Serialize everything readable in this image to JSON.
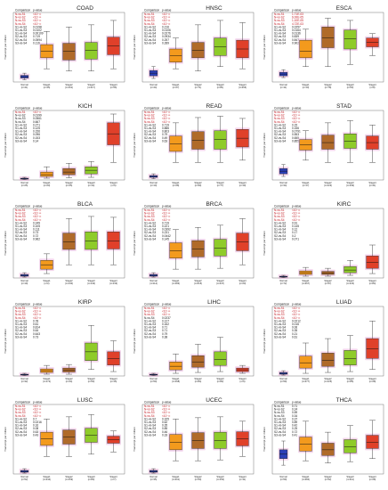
{
  "comparison_header": "Comparison",
  "pvalue_header": "p-value",
  "ylabel": "Transcript per million",
  "stage_labels": [
    "Normal",
    "Stage1",
    "Stage2",
    "Stage3",
    "Stage4"
  ],
  "colors": {
    "normal": "#2c3fb8",
    "stage1": "#f39a1d",
    "stage2": "#b06a2a",
    "stage3": "#8fcb2a",
    "stage4": "#e0402a",
    "halo": "#e8a6d6",
    "red": "#c0141c"
  },
  "chart_data": [
    {
      "type": "box",
      "title": "COAD",
      "n": [
        "n=41",
        "n=45",
        "n=161",
        "n=117",
        "n=56"
      ],
      "ymax": 150,
      "comparisons": [
        [
          "N-vs-S1",
          "<10⁻¹²"
        ],
        [
          "N-vs-S2",
          "<10⁻¹²"
        ],
        [
          "N-vs-S3",
          "<10⁻¹²"
        ],
        [
          "N-vs-S4",
          "<10⁻¹²"
        ],
        [
          "S1-vs-S2",
          "0.0198"
        ],
        [
          "S1-vs-S3",
          "0.0102"
        ],
        [
          "S1-vs-S4",
          "0.00109"
        ],
        [
          "S2-vs-S3",
          "0.719"
        ],
        [
          "S2-vs-S4",
          "0.0594"
        ],
        [
          "S3-vs-S4",
          "0.119"
        ]
      ],
      "boxes": [
        [
          5,
          9,
          12,
          15,
          20
        ],
        [
          30,
          55,
          70,
          85,
          115
        ],
        [
          25,
          50,
          70,
          88,
          125
        ],
        [
          25,
          52,
          72,
          90,
          130
        ],
        [
          30,
          62,
          82,
          102,
          140
        ]
      ]
    },
    {
      "type": "box",
      "title": "HNSC",
      "n": [
        "n=44",
        "n=27",
        "n=71",
        "n=81",
        "n=266"
      ],
      "ymax": 150,
      "comparisons": [
        [
          "N-vs-S1",
          "<10⁻¹²"
        ],
        [
          "N-vs-S2",
          "<10⁻¹²"
        ],
        [
          "N-vs-S3",
          "<10⁻¹²"
        ],
        [
          "N-vs-S4",
          "<10⁻¹²"
        ],
        [
          "S1-vs-S2",
          "0.216"
        ],
        [
          "S1-vs-S3",
          "0.0106"
        ],
        [
          "S1-vs-S4",
          "0.0276"
        ],
        [
          "S2-vs-S3",
          "0.0934"
        ],
        [
          "S2-vs-S4",
          "0.257"
        ],
        [
          "S3-vs-S4",
          "0.289"
        ]
      ],
      "boxes": [
        [
          8,
          14,
          20,
          26,
          35
        ],
        [
          30,
          45,
          60,
          75,
          100
        ],
        [
          25,
          55,
          72,
          90,
          130
        ],
        [
          35,
          60,
          80,
          100,
          140
        ],
        [
          30,
          55,
          75,
          95,
          135
        ]
      ]
    },
    {
      "type": "box",
      "title": "ESCA",
      "n": [
        "n=11",
        "n=10",
        "n=78",
        "n=53",
        "n=8"
      ],
      "ymax": 150,
      "comparisons": [
        [
          "N-vs-S1",
          "1.71E-03"
        ],
        [
          "N-vs-S2",
          "6.00E-05"
        ],
        [
          "N-vs-S3",
          "1.10E-05"
        ],
        [
          "N-vs-S4",
          "4.72E-03"
        ],
        [
          "S1-vs-S2",
          "0.0257"
        ],
        [
          "S1-vs-S3",
          "0.0164"
        ],
        [
          "S1-vs-S4",
          "0.0136"
        ],
        [
          "S2-vs-S3",
          "0.839"
        ],
        [
          "S2-vs-S4",
          "0.847"
        ],
        [
          "S3-vs-S4",
          "0.902"
        ]
      ],
      "boxes": [
        [
          10,
          14,
          18,
          22,
          28
        ],
        [
          35,
          55,
          70,
          95,
          120
        ],
        [
          35,
          78,
          100,
          125,
          145
        ],
        [
          40,
          75,
          98,
          118,
          140
        ],
        [
          60,
          80,
          90,
          100,
          110
        ]
      ]
    },
    {
      "type": "box",
      "title": "KICH",
      "n": [
        "n=25",
        "n=20",
        "n=25",
        "n=14",
        "n=6"
      ],
      "ymax": 150,
      "comparisons": [
        [
          "N-vs-S1",
          "<10⁻¹²"
        ],
        [
          "N-vs-S2",
          "0.0199"
        ],
        [
          "N-vs-S3",
          "0.0561"
        ],
        [
          "N-vs-S4",
          "0.667"
        ],
        [
          "S1-vs-S2",
          "0.271"
        ],
        [
          "S1-vs-S3",
          "0.125"
        ],
        [
          "S1-vs-S4",
          "0.156"
        ],
        [
          "S2-vs-S3",
          "0.096"
        ],
        [
          "S2-vs-S4",
          "0.153"
        ],
        [
          "S3-vs-S4",
          "0.14"
        ]
      ],
      "boxes": [
        [
          1,
          2,
          3,
          4,
          6
        ],
        [
          4,
          8,
          12,
          18,
          30
        ],
        [
          5,
          12,
          18,
          26,
          38
        ],
        [
          6,
          14,
          22,
          30,
          42
        ],
        [
          40,
          80,
          105,
          130,
          150
        ]
      ]
    },
    {
      "type": "box",
      "title": "READ",
      "n": [
        "n=10",
        "n=28",
        "n=90",
        "n=77",
        "n=19"
      ],
      "ymax": 150,
      "comparisons": [
        [
          "N-vs-S1",
          "<10⁻¹²"
        ],
        [
          "N-vs-S2",
          "<10⁻¹²"
        ],
        [
          "N-vs-S3",
          "<10⁻¹²"
        ],
        [
          "N-vs-S4",
          "<10⁻¹²"
        ],
        [
          "S1-vs-S2",
          "0.719"
        ],
        [
          "S1-vs-S3",
          "0.886"
        ],
        [
          "S1-vs-S4",
          "0.803"
        ],
        [
          "S2-vs-S3",
          "0.79"
        ],
        [
          "S2-vs-S4",
          "0.49"
        ],
        [
          "S3-vs-S4",
          "0.63"
        ]
      ],
      "boxes": [
        [
          3,
          6,
          8,
          10,
          14
        ],
        [
          40,
          65,
          82,
          100,
          130
        ],
        [
          40,
          70,
          90,
          110,
          142
        ],
        [
          40,
          70,
          92,
          112,
          145
        ],
        [
          45,
          75,
          95,
          115,
          140
        ]
      ]
    },
    {
      "type": "box",
      "title": "STAD",
      "n": [
        "n=34",
        "n=17",
        "n=123",
        "n=169",
        "n=41"
      ],
      "ymax": 150,
      "comparisons": [
        [
          "N-vs-S1",
          "<10⁻¹²"
        ],
        [
          "N-vs-S2",
          "<10⁻¹²"
        ],
        [
          "N-vs-S3",
          "<10⁻¹²"
        ],
        [
          "N-vs-S4",
          "<10⁻¹²"
        ],
        [
          "S1-vs-S2",
          "0.15"
        ],
        [
          "S1-vs-S3",
          "0.156"
        ],
        [
          "S1-vs-S4",
          "0.0791"
        ],
        [
          "S2-vs-S3",
          "0.553"
        ],
        [
          "S2-vs-S4",
          "0.655"
        ],
        [
          "S3-vs-S4",
          "0.855"
        ]
      ],
      "boxes": [
        [
          8,
          14,
          20,
          26,
          35
        ],
        [
          45,
          68,
          80,
          92,
          112
        ],
        [
          40,
          70,
          85,
          102,
          130
        ],
        [
          40,
          72,
          88,
          105,
          135
        ],
        [
          40,
          70,
          85,
          100,
          125
        ]
      ]
    },
    {
      "type": "box",
      "title": "BLCA",
      "n": [
        "n=19",
        "n=2",
        "n=130",
        "n=140",
        "n=133"
      ],
      "ymax": 150,
      "comparisons": [
        [
          "N-vs-S1",
          "<10⁻¹²"
        ],
        [
          "N-vs-S2",
          "<10⁻¹²"
        ],
        [
          "N-vs-S3",
          "<10⁻¹²"
        ],
        [
          "N-vs-S4",
          "<10⁻¹²"
        ],
        [
          "S1-vs-S2",
          "0.249"
        ],
        [
          "S1-vs-S3",
          "0.105"
        ],
        [
          "S1-vs-S4",
          "0.111"
        ],
        [
          "S2-vs-S3",
          "0.73"
        ],
        [
          "S2-vs-S4",
          "0.72"
        ],
        [
          "S3-vs-S4",
          "0.962"
        ]
      ],
      "boxes": [
        [
          2,
          4,
          6,
          8,
          12
        ],
        [
          10,
          20,
          30,
          40,
          55
        ],
        [
          30,
          65,
          82,
          102,
          135
        ],
        [
          30,
          65,
          84,
          105,
          140
        ],
        [
          30,
          66,
          84,
          105,
          138
        ]
      ]
    },
    {
      "type": "box",
      "title": "BRCA",
      "n": [
        "n=114",
        "n=183",
        "n=615",
        "n=247",
        "n=20"
      ],
      "ymax": 150,
      "comparisons": [
        [
          "N-vs-S1",
          "<10⁻¹²"
        ],
        [
          "N-vs-S2",
          "<10⁻¹²"
        ],
        [
          "N-vs-S3",
          "<10⁻¹²"
        ],
        [
          "N-vs-S4",
          "<10⁻¹²"
        ],
        [
          "S1-vs-S2",
          "0.719"
        ],
        [
          "S1-vs-S3",
          "0.221"
        ],
        [
          "S1-vs-S4",
          "0.0392"
        ],
        [
          "S2-vs-S3",
          "0.231"
        ],
        [
          "S2-vs-S4",
          "0.0442"
        ],
        [
          "S3-vs-S4",
          "0.145"
        ]
      ],
      "boxes": [
        [
          2,
          4,
          6,
          8,
          12
        ],
        [
          20,
          45,
          62,
          80,
          110
        ],
        [
          20,
          48,
          66,
          85,
          115
        ],
        [
          22,
          50,
          68,
          88,
          120
        ],
        [
          30,
          62,
          82,
          102,
          135
        ]
      ]
    },
    {
      "type": "box",
      "title": "KIRC",
      "n": [
        "n=72",
        "n=267",
        "n=57",
        "n=123",
        "n=84"
      ],
      "ymax": 150,
      "comparisons": [
        [
          "N-vs-S1",
          "<10⁻¹²"
        ],
        [
          "N-vs-S2",
          "<10⁻¹²"
        ],
        [
          "N-vs-S3",
          "<10⁻¹²"
        ],
        [
          "N-vs-S4",
          "<10⁻¹²"
        ],
        [
          "S1-vs-S2",
          "0.91"
        ],
        [
          "S1-vs-S3",
          "0.145"
        ],
        [
          "S1-vs-S4",
          "0.12"
        ],
        [
          "S2-vs-S3",
          "0.17"
        ],
        [
          "S2-vs-S4",
          "0.2"
        ],
        [
          "S3-vs-S4",
          "0.071"
        ]
      ],
      "boxes": [
        [
          1,
          2,
          3,
          4,
          6
        ],
        [
          4,
          8,
          12,
          16,
          24
        ],
        [
          4,
          8,
          11,
          15,
          22
        ],
        [
          6,
          12,
          18,
          26,
          40
        ],
        [
          10,
          22,
          35,
          50,
          75
        ]
      ]
    },
    {
      "type": "box",
      "title": "KIRP",
      "n": [
        "n=32",
        "n=172",
        "n=24",
        "n=53",
        "n=15"
      ],
      "ymax": 150,
      "comparisons": [
        [
          "N-vs-S1",
          "<10⁻¹²"
        ],
        [
          "N-vs-S2",
          "<10⁻¹²"
        ],
        [
          "N-vs-S3",
          "<10⁻¹²"
        ],
        [
          "N-vs-S4",
          "<10⁻¹²"
        ],
        [
          "S1-vs-S2",
          "0.78"
        ],
        [
          "S1-vs-S3",
          "0.61"
        ],
        [
          "S1-vs-S4",
          "0.814"
        ],
        [
          "S2-vs-S3",
          "0.64"
        ],
        [
          "S2-vs-S4",
          "0.643"
        ],
        [
          "S3-vs-S4",
          "0.73"
        ]
      ],
      "boxes": [
        [
          1,
          2,
          3,
          4,
          6
        ],
        [
          4,
          8,
          12,
          16,
          24
        ],
        [
          4,
          9,
          13,
          18,
          26
        ],
        [
          15,
          35,
          55,
          75,
          115
        ],
        [
          10,
          25,
          40,
          55,
          80
        ]
      ]
    },
    {
      "type": "box",
      "title": "LIHC",
      "n": [
        "n=50",
        "n=168",
        "n=84",
        "n=82",
        "n=6"
      ],
      "ymax": 150,
      "comparisons": [
        [
          "N-vs-S1",
          "<10⁻¹²"
        ],
        [
          "N-vs-S2",
          "<10⁻¹²"
        ],
        [
          "N-vs-S3",
          "<10⁻¹²"
        ],
        [
          "N-vs-S4",
          "0.0237"
        ],
        [
          "S1-vs-S2",
          "0.127"
        ],
        [
          "S1-vs-S3",
          "0.162"
        ],
        [
          "S1-vs-S4",
          "0.71"
        ],
        [
          "S2-vs-S3",
          "0.71"
        ],
        [
          "S2-vs-S4",
          "0.79"
        ],
        [
          "S3-vs-S4",
          "0.38"
        ]
      ],
      "boxes": [
        [
          1,
          2,
          3,
          4,
          6
        ],
        [
          6,
          14,
          22,
          32,
          50
        ],
        [
          8,
          20,
          32,
          46,
          72
        ],
        [
          10,
          24,
          38,
          55,
          88
        ],
        [
          6,
          10,
          14,
          18,
          24
        ]
      ]
    },
    {
      "type": "box",
      "title": "LUAD",
      "n": [
        "n=59",
        "n=277",
        "n=125",
        "n=85",
        "n=28"
      ],
      "ymax": 150,
      "comparisons": [
        [
          "N-vs-S1",
          "<10⁻¹²"
        ],
        [
          "N-vs-S2",
          "<10⁻¹²"
        ],
        [
          "N-vs-S3",
          "<10⁻¹²"
        ],
        [
          "N-vs-S4",
          "<10⁻¹²"
        ],
        [
          "S1-vs-S2",
          "0.0212"
        ],
        [
          "S1-vs-S3",
          "0.016"
        ],
        [
          "S1-vs-S4",
          "0.06"
        ],
        [
          "S2-vs-S3",
          "0.35"
        ],
        [
          "S2-vs-S4",
          "0.21"
        ],
        [
          "S3-vs-S4",
          "0.61"
        ]
      ],
      "boxes": [
        [
          2,
          4,
          6,
          8,
          12
        ],
        [
          6,
          18,
          30,
          45,
          75
        ],
        [
          8,
          22,
          36,
          52,
          85
        ],
        [
          10,
          25,
          40,
          58,
          92
        ],
        [
          15,
          40,
          62,
          85,
          125
        ]
      ]
    },
    {
      "type": "box",
      "title": "LUSC",
      "n": [
        "n=52",
        "n=244",
        "n=159",
        "n=83",
        "n=7"
      ],
      "ymax": 150,
      "comparisons": [
        [
          "N-vs-S1",
          "<10⁻¹²"
        ],
        [
          "N-vs-S2",
          "<10⁻¹²"
        ],
        [
          "N-vs-S3",
          "<10⁻¹²"
        ],
        [
          "N-vs-S4",
          "<10⁻¹²"
        ],
        [
          "S1-vs-S2",
          "0.7"
        ],
        [
          "S1-vs-S3",
          "0.0216"
        ],
        [
          "S1-vs-S4",
          "0.16"
        ],
        [
          "S2-vs-S3",
          "0.08"
        ],
        [
          "S2-vs-S4",
          "0.63"
        ],
        [
          "S3-vs-S4",
          "0.43"
        ]
      ],
      "boxes": [
        [
          2,
          4,
          6,
          8,
          12
        ],
        [
          40,
          65,
          80,
          95,
          125
        ],
        [
          40,
          68,
          84,
          100,
          130
        ],
        [
          45,
          72,
          88,
          104,
          135
        ],
        [
          50,
          70,
          78,
          86,
          98
        ]
      ]
    },
    {
      "type": "box",
      "title": "UCEC",
      "n": [
        "n=35",
        "n=201",
        "n=50",
        "n=150",
        "n=11"
      ],
      "ymax": 150,
      "comparisons": [
        [
          "N-vs-S1",
          "<10⁻¹²"
        ],
        [
          "N-vs-S2",
          "<10⁻¹²"
        ],
        [
          "N-vs-S3",
          "<10⁻¹²"
        ],
        [
          "N-vs-S4",
          "<10⁻¹²"
        ],
        [
          "S1-vs-S2",
          "0.325"
        ],
        [
          "S1-vs-S3",
          "0.62"
        ],
        [
          "S1-vs-S4",
          "0.35"
        ],
        [
          "S2-vs-S3",
          "0.85"
        ],
        [
          "S2-vs-S4",
          "0.46"
        ],
        [
          "S3-vs-S4",
          "0.33"
        ]
      ],
      "boxes": [
        [
          2,
          4,
          6,
          8,
          12
        ],
        [
          30,
          55,
          72,
          90,
          125
        ],
        [
          30,
          58,
          76,
          94,
          128
        ],
        [
          32,
          58,
          76,
          95,
          130
        ],
        [
          40,
          64,
          80,
          96,
          120
        ]
      ]
    },
    {
      "type": "box",
      "title": "THCA",
      "n": [
        "n=59",
        "n=284",
        "n=52",
        "n=112",
        "n=28"
      ],
      "ymax": 150,
      "comparisons": [
        [
          "N-vs-S1",
          "0.71"
        ],
        [
          "N-vs-S2",
          "0.24"
        ],
        [
          "N-vs-S3",
          "0.59"
        ],
        [
          "N-vs-S4",
          "0.34"
        ],
        [
          "S1-vs-S2",
          "0.37"
        ],
        [
          "S1-vs-S3",
          "0.89"
        ],
        [
          "S1-vs-S4",
          "0.42"
        ],
        [
          "S2-vs-S3",
          "0.25"
        ],
        [
          "S2-vs-S4",
          "0.72"
        ],
        [
          "S3-vs-S4",
          "0.41"
        ]
      ],
      "boxes": [
        [
          20,
          35,
          45,
          55,
          75
        ],
        [
          30,
          52,
          68,
          84,
          120
        ],
        [
          25,
          42,
          55,
          70,
          95
        ],
        [
          28,
          48,
          62,
          78,
          110
        ],
        [
          35,
          58,
          72,
          88,
          122
        ]
      ]
    }
  ]
}
